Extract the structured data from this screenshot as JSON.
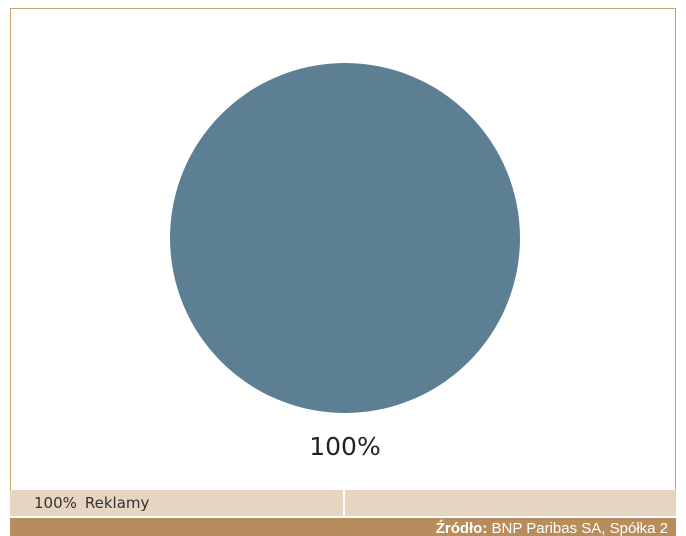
{
  "chart_data": {
    "type": "pie",
    "title": "",
    "slices": [
      {
        "label": "Reklamy",
        "value": 100,
        "data_label": "100%",
        "color": "#5c7f94"
      }
    ],
    "legend_position": "bottom",
    "grid": false
  },
  "legend": {
    "items": [
      {
        "value": "100%",
        "label": "Reklamy"
      }
    ]
  },
  "source": {
    "label": "Źródło:",
    "text": "BNP Paribas SA, Spółka 2"
  },
  "colors": {
    "accent_border": "#c9a46e",
    "legend_bg": "#e7d4c1",
    "source_bg": "#b88d5e"
  }
}
